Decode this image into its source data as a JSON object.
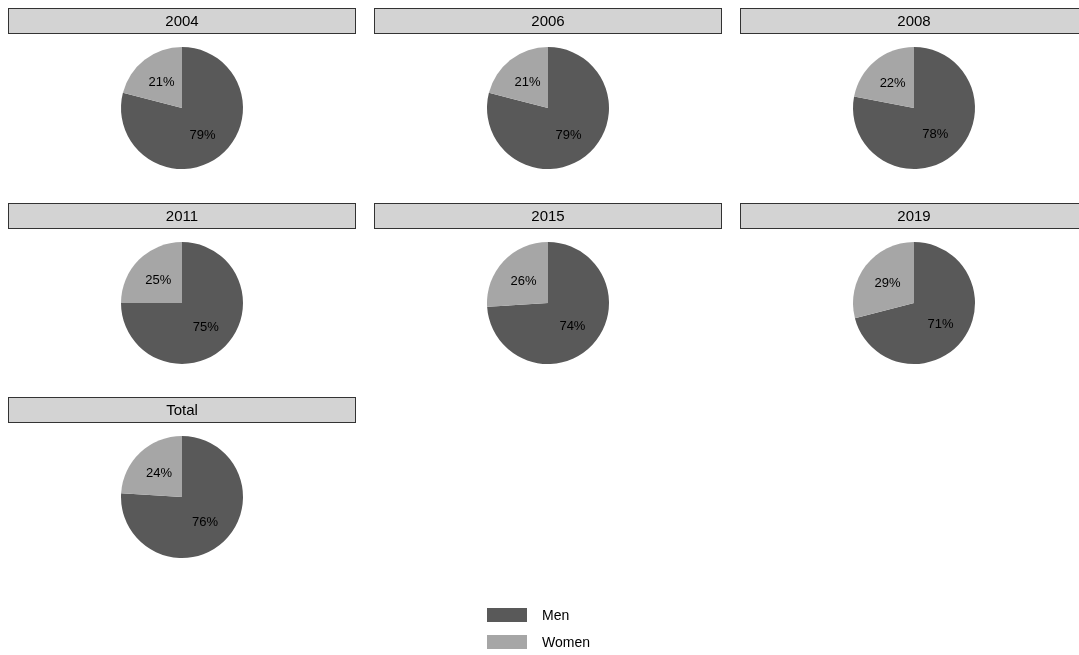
{
  "chart_data": [
    {
      "type": "pie",
      "title": "2004",
      "categories": [
        null,
        null
      ],
      "values": [
        79,
        21
      ],
      "colors": [
        "#595959",
        "#a6a6a6"
      ],
      "value_labels": [
        "79%",
        "21%"
      ]
    },
    {
      "type": "pie",
      "title": "2006",
      "categories": [
        null,
        null
      ],
      "values": [
        79,
        21
      ],
      "colors": [
        "#595959",
        "#a6a6a6"
      ],
      "value_labels": [
        "79%",
        "21%"
      ]
    },
    {
      "type": "pie",
      "title": "2008",
      "categories": [
        null,
        null
      ],
      "values": [
        78,
        22
      ],
      "colors": [
        "#595959",
        "#a6a6a6"
      ],
      "value_labels": [
        "78%",
        "22%"
      ]
    },
    {
      "type": "pie",
      "title": "2011",
      "categories": [
        null,
        null
      ],
      "values": [
        75,
        25
      ],
      "colors": [
        "#595959",
        "#a6a6a6"
      ],
      "value_labels": [
        "75%",
        "25%"
      ]
    },
    {
      "type": "pie",
      "title": "2015",
      "categories": [
        null,
        null
      ],
      "values": [
        74,
        26
      ],
      "colors": [
        "#595959",
        "#a6a6a6"
      ],
      "value_labels": [
        "74%",
        "26%"
      ]
    },
    {
      "type": "pie",
      "title": "2019",
      "categories": [
        null,
        null
      ],
      "values": [
        71,
        29
      ],
      "colors": [
        "#595959",
        "#a6a6a6"
      ],
      "value_labels": [
        "71%",
        "29%"
      ]
    },
    {
      "type": "pie",
      "title": "Total",
      "categories": [
        "Men",
        "Women"
      ],
      "values": [
        76,
        24
      ],
      "colors": [
        "#595959",
        "#a6a6a6"
      ],
      "value_labels": [
        "76%",
        "24%"
      ],
      "legend": "bottom"
    }
  ]
}
